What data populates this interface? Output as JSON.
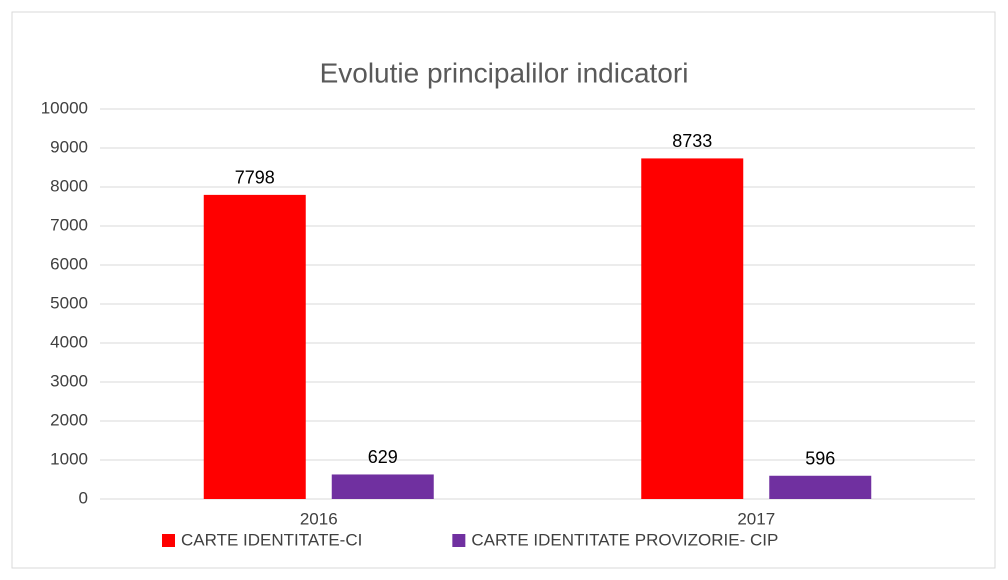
{
  "chart_data": {
    "type": "bar",
    "title": "Evolutie principalilor indicatori",
    "categories": [
      "2016",
      "2017"
    ],
    "series": [
      {
        "name": "CARTE IDENTITATE-CI",
        "color": "#ff0000",
        "values": [
          7798,
          8733
        ]
      },
      {
        "name": "CARTE IDENTITATE PROVIZORIE- CIP",
        "color": "#7030a0",
        "values": [
          629,
          596
        ]
      }
    ],
    "ylim": [
      0,
      10000
    ],
    "yticks": [
      0,
      1000,
      2000,
      3000,
      4000,
      5000,
      6000,
      7000,
      8000,
      9000,
      10000
    ],
    "grid": true,
    "legend": "bottom"
  }
}
